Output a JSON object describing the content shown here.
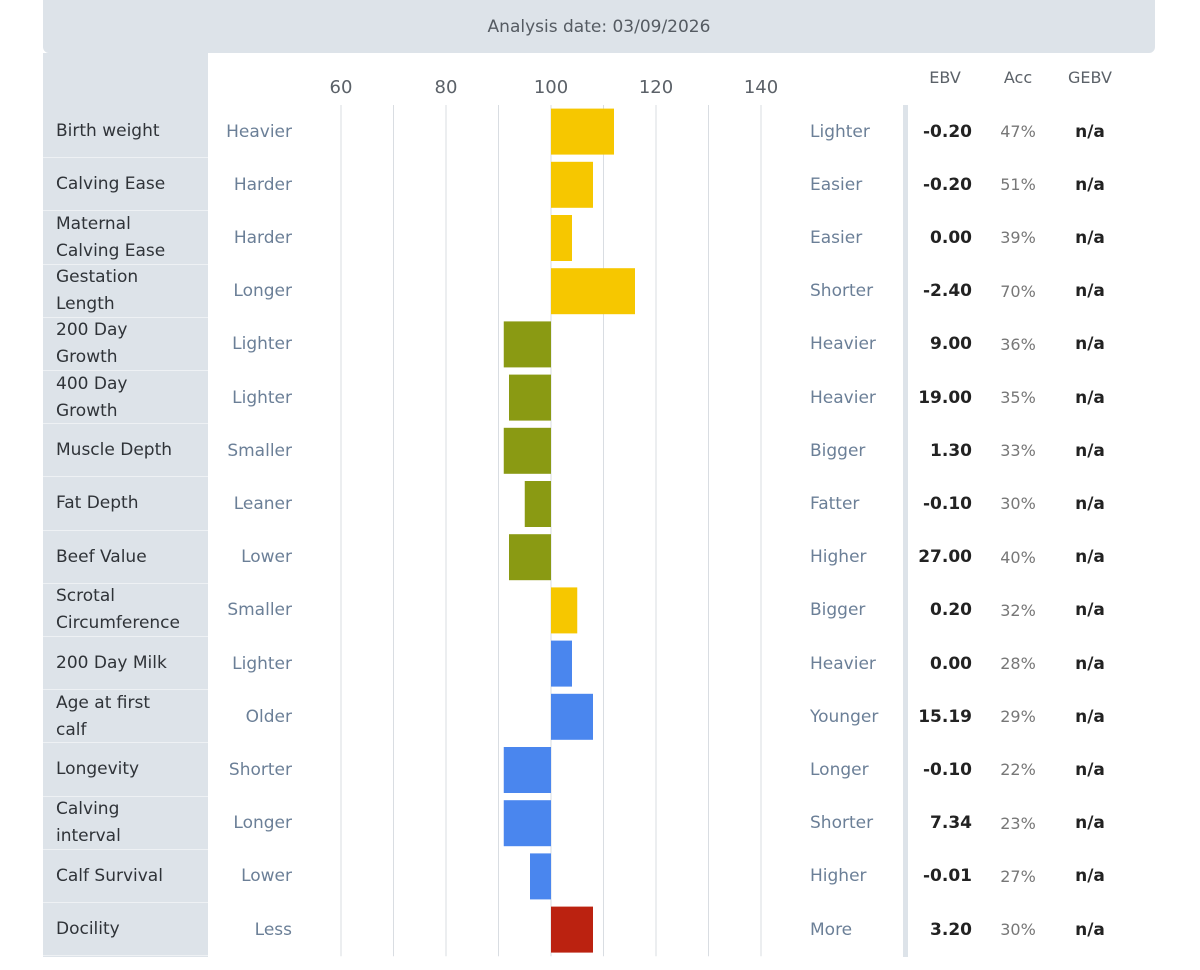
{
  "analysis_label": "Analysis date: 03/09/2026",
  "columns": {
    "ebv": "EBV",
    "acc": "Acc",
    "gebv": "GEBV"
  },
  "colors": {
    "calving": "#f6c700",
    "growth": "#8a9a13",
    "maternal": "#4a86ee",
    "temperament": "#bb2210",
    "grid": "#d9dde2"
  },
  "chart_data": {
    "type": "bar",
    "orientation": "horizontal",
    "baseline": 100,
    "xlim": [
      50,
      150
    ],
    "ticks": [
      60,
      80,
      100,
      120,
      140
    ],
    "grid": true,
    "categories": [
      "Birth weight",
      "Calving Ease",
      "Maternal Calving Ease",
      "Gestation Length",
      "200 Day Growth",
      "400 Day Growth",
      "Muscle Depth",
      "Fat Depth",
      "Beef Value",
      "Scrotal Circumference",
      "200 Day Milk",
      "Age at first calf",
      "Longevity",
      "Calving interval",
      "Calf Survival",
      "Docility"
    ],
    "values": [
      112,
      108,
      104,
      116,
      91,
      92,
      91,
      95,
      92,
      105,
      104,
      108,
      91,
      91,
      96,
      108
    ],
    "groups": [
      "calving",
      "calving",
      "calving",
      "calving",
      "growth",
      "growth",
      "growth",
      "growth",
      "growth",
      "calving",
      "maternal",
      "maternal",
      "maternal",
      "maternal",
      "maternal",
      "temperament"
    ]
  },
  "rows": [
    {
      "trait": "Birth weight",
      "low": "Heavier",
      "high": "Lighter",
      "ebv": "-0.20",
      "acc": "47%",
      "gebv": "n/a"
    },
    {
      "trait": "Calving Ease",
      "low": "Harder",
      "high": "Easier",
      "ebv": "-0.20",
      "acc": "51%",
      "gebv": "n/a"
    },
    {
      "trait": "Maternal\nCalving Ease",
      "low": "Harder",
      "high": "Easier",
      "ebv": "0.00",
      "acc": "39%",
      "gebv": "n/a"
    },
    {
      "trait": "Gestation\nLength",
      "low": "Longer",
      "high": "Shorter",
      "ebv": "-2.40",
      "acc": "70%",
      "gebv": "n/a"
    },
    {
      "trait": "200 Day\nGrowth",
      "low": "Lighter",
      "high": "Heavier",
      "ebv": "9.00",
      "acc": "36%",
      "gebv": "n/a"
    },
    {
      "trait": "400 Day\nGrowth",
      "low": "Lighter",
      "high": "Heavier",
      "ebv": "19.00",
      "acc": "35%",
      "gebv": "n/a"
    },
    {
      "trait": "Muscle Depth",
      "low": "Smaller",
      "high": "Bigger",
      "ebv": "1.30",
      "acc": "33%",
      "gebv": "n/a"
    },
    {
      "trait": "Fat Depth",
      "low": "Leaner",
      "high": "Fatter",
      "ebv": "-0.10",
      "acc": "30%",
      "gebv": "n/a"
    },
    {
      "trait": "Beef Value",
      "low": "Lower",
      "high": "Higher",
      "ebv": "27.00",
      "acc": "40%",
      "gebv": "n/a"
    },
    {
      "trait": "Scrotal\nCircumference",
      "low": "Smaller",
      "high": "Bigger",
      "ebv": "0.20",
      "acc": "32%",
      "gebv": "n/a"
    },
    {
      "trait": "200 Day Milk",
      "low": "Lighter",
      "high": "Heavier",
      "ebv": "0.00",
      "acc": "28%",
      "gebv": "n/a"
    },
    {
      "trait": "Age at first\ncalf",
      "low": "Older",
      "high": "Younger",
      "ebv": "15.19",
      "acc": "29%",
      "gebv": "n/a"
    },
    {
      "trait": "Longevity",
      "low": "Shorter",
      "high": "Longer",
      "ebv": "-0.10",
      "acc": "22%",
      "gebv": "n/a"
    },
    {
      "trait": "Calving\ninterval",
      "low": "Longer",
      "high": "Shorter",
      "ebv": "7.34",
      "acc": "23%",
      "gebv": "n/a"
    },
    {
      "trait": "Calf Survival",
      "low": "Lower",
      "high": "Higher",
      "ebv": "-0.01",
      "acc": "27%",
      "gebv": "n/a"
    },
    {
      "trait": "Docility",
      "low": "Less",
      "high": "More",
      "ebv": "3.20",
      "acc": "30%",
      "gebv": "n/a"
    }
  ]
}
